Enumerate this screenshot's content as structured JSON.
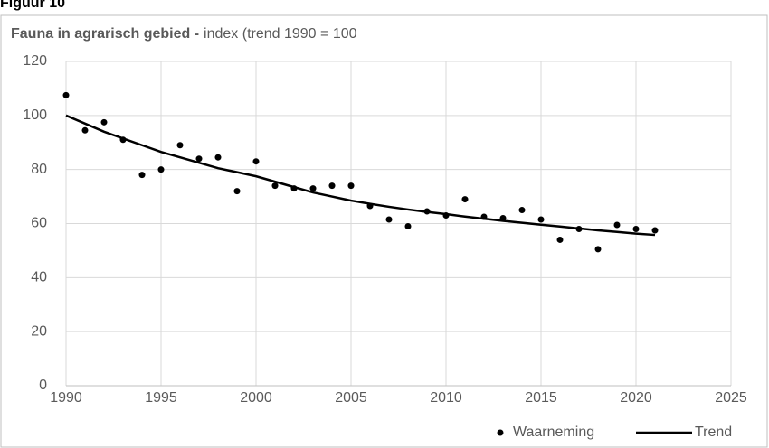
{
  "header": {
    "label": "Figuur 10"
  },
  "chart_data": {
    "type": "scatter",
    "title": "Fauna in agrarisch gebied -",
    "subtitle": "index (trend 1990 = 100",
    "x": [
      1990,
      1991,
      1992,
      1993,
      1994,
      1995,
      1996,
      1997,
      1998,
      1999,
      2000,
      2001,
      2002,
      2003,
      2004,
      2005,
      2006,
      2007,
      2008,
      2009,
      2010,
      2011,
      2012,
      2013,
      2014,
      2015,
      2016,
      2017,
      2018,
      2019,
      2020,
      2021
    ],
    "series": [
      {
        "name": "Waarneming",
        "mark": "dot",
        "color": "#000000",
        "values": [
          107.5,
          94.5,
          97.5,
          91,
          78,
          80,
          89,
          84,
          84.5,
          72,
          83,
          74,
          73,
          73,
          74,
          74,
          66.5,
          61.5,
          59,
          64.5,
          63,
          69,
          62.5,
          62,
          65,
          61.5,
          54,
          58,
          50.5,
          59.5,
          58,
          57.5
        ]
      },
      {
        "name": "Trend",
        "mark": "line",
        "color": "#000000",
        "values": [
          100,
          97,
          94,
          91.5,
          89,
          86.5,
          84.5,
          82.5,
          80.5,
          79,
          77.5,
          75.5,
          73.5,
          71.5,
          70,
          68.5,
          67.3,
          66.2,
          65.2,
          64.3,
          63.5,
          62.6,
          61.8,
          61,
          60.3,
          59.6,
          58.9,
          58.2,
          57.5,
          56.9,
          56.3,
          55.8
        ]
      }
    ],
    "xlim": [
      1990,
      2025
    ],
    "xticks": [
      1990,
      1995,
      2000,
      2005,
      2010,
      2015,
      2020,
      2025
    ],
    "ylim": [
      0,
      120
    ],
    "yticks": [
      0,
      20,
      40,
      60,
      80,
      100,
      120
    ],
    "grid": true,
    "legend": "bottom-right"
  }
}
